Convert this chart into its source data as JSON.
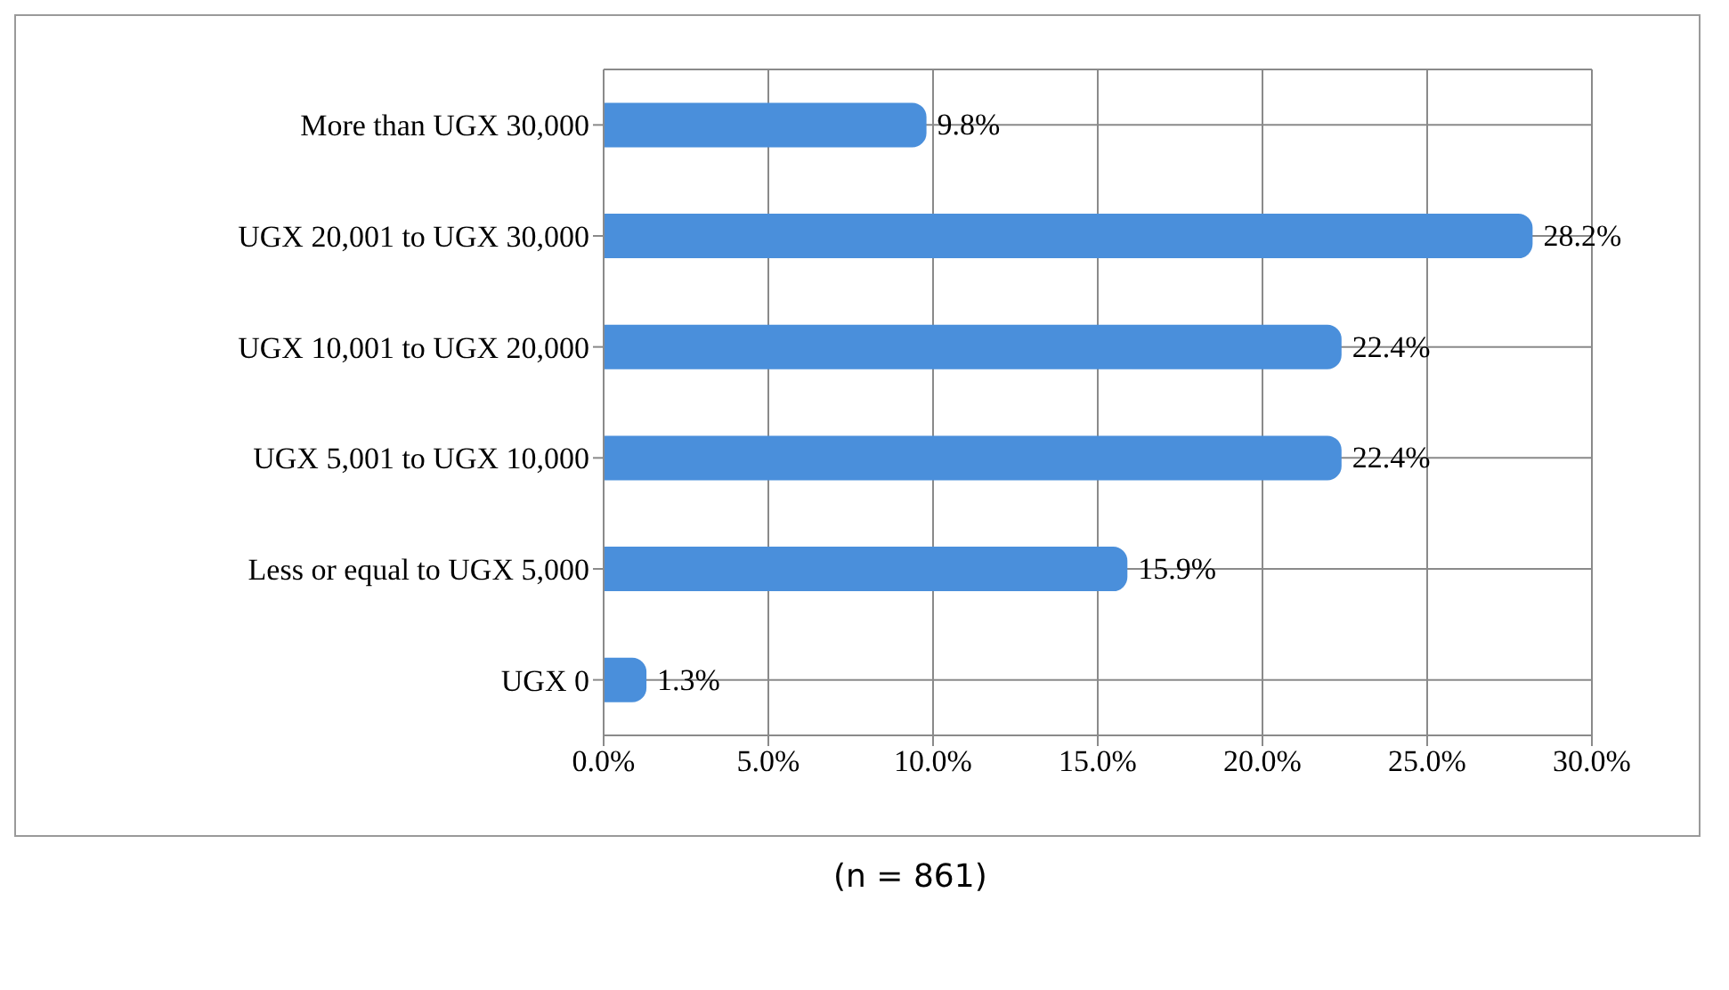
{
  "chart_data": {
    "type": "bar",
    "orientation": "horizontal",
    "categories": [
      "More than UGX 30,000",
      "UGX 20,001 to UGX 30,000",
      "UGX 10,001 to UGX 20,000",
      "UGX 5,001 to UGX 10,000",
      "Less or equal to UGX 5,000",
      "UGX 0"
    ],
    "values": [
      9.8,
      28.2,
      22.4,
      22.4,
      15.9,
      1.3
    ],
    "value_labels": [
      "9.8%",
      "28.2%",
      "22.4%",
      "22.4%",
      "15.9%",
      "1.3%"
    ],
    "color": "#4a8fdb",
    "xlim": [
      0,
      30
    ],
    "xticks": [
      {
        "value": 0,
        "label": "0.0%"
      },
      {
        "value": 5,
        "label": "5.0%"
      },
      {
        "value": 10,
        "label": "10.0%"
      },
      {
        "value": 15,
        "label": "15.0%"
      },
      {
        "value": 20,
        "label": "20.0%"
      },
      {
        "value": 25,
        "label": "25.0%"
      },
      {
        "value": 30,
        "label": "30.0%"
      }
    ],
    "grid": true,
    "annotations": [
      "(n = 861)"
    ]
  }
}
